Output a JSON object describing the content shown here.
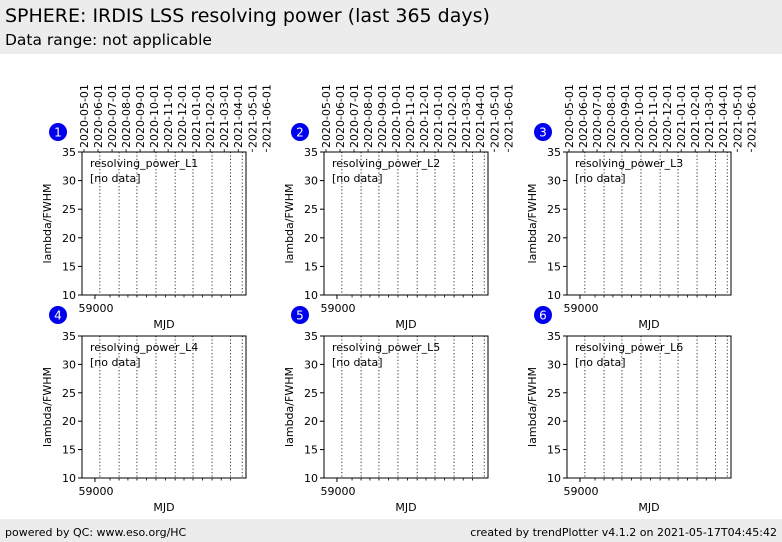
{
  "header": {
    "title": "SPHERE: IRDIS LSS resolving power (last 365 days)",
    "subtitle": "Data range: not applicable"
  },
  "footer": {
    "left": "powered by QC: www.eso.org/HC",
    "right": "created by trendPlotter v4.1.2 on 2021-05-17T04:45:42"
  },
  "colors": {
    "badge": "#0000ee",
    "badge_text": "#ffffff",
    "header_bg": "#ececec",
    "axis": "#000000"
  },
  "chart_data": [
    {
      "type": "scatter",
      "badge": "1",
      "legend_label": "resolving_power_L1",
      "note": "[no data]",
      "xlabel": "MJD",
      "ylabel": "lambda/FWHM",
      "ylim": [
        10,
        35
      ],
      "yticks": [
        "10",
        "15",
        "20",
        "25",
        "30",
        "35"
      ],
      "xtick_label": "59000",
      "date_ticks": [
        "2020-05-01",
        "2020-06-01",
        "2020-07-01",
        "2020-08-01",
        "2020-09-01",
        "2020-10-01",
        "2020-11-01",
        "2020-12-01",
        "2021-01-01",
        "2021-02-01",
        "2021-03-01",
        "2021-04-01",
        "2021-05-01",
        "2021-06-01"
      ],
      "values": []
    },
    {
      "type": "scatter",
      "badge": "2",
      "legend_label": "resolving_power_L2",
      "note": "[no data]",
      "xlabel": "MJD",
      "ylabel": "lambda/FWHM",
      "ylim": [
        10,
        35
      ],
      "yticks": [
        "10",
        "15",
        "20",
        "25",
        "30",
        "35"
      ],
      "xtick_label": "59000",
      "date_ticks": [
        "2020-05-01",
        "2020-06-01",
        "2020-07-01",
        "2020-08-01",
        "2020-09-01",
        "2020-10-01",
        "2020-11-01",
        "2020-12-01",
        "2021-01-01",
        "2021-02-01",
        "2021-03-01",
        "2021-04-01",
        "2021-05-01",
        "2021-06-01"
      ],
      "values": []
    },
    {
      "type": "scatter",
      "badge": "3",
      "legend_label": "resolving_power_L3",
      "note": "[no data]",
      "xlabel": "MJD",
      "ylabel": "lambda/FWHM",
      "ylim": [
        10,
        35
      ],
      "yticks": [
        "10",
        "15",
        "20",
        "25",
        "30",
        "35"
      ],
      "xtick_label": "59000",
      "date_ticks": [
        "2020-05-01",
        "2020-06-01",
        "2020-07-01",
        "2020-08-01",
        "2020-09-01",
        "2020-10-01",
        "2020-11-01",
        "2020-12-01",
        "2021-01-01",
        "2021-02-01",
        "2021-03-01",
        "2021-04-01",
        "2021-05-01",
        "2021-06-01"
      ],
      "values": []
    },
    {
      "type": "scatter",
      "badge": "4",
      "legend_label": "resolving_power_L4",
      "note": "[no data]",
      "xlabel": "MJD",
      "ylabel": "lambda/FWHM",
      "ylim": [
        10,
        35
      ],
      "yticks": [
        "10",
        "15",
        "20",
        "25",
        "30",
        "35"
      ],
      "xtick_label": "59000",
      "date_ticks": [],
      "values": []
    },
    {
      "type": "scatter",
      "badge": "5",
      "legend_label": "resolving_power_L5",
      "note": "[no data]",
      "xlabel": "MJD",
      "ylabel": "lambda/FWHM",
      "ylim": [
        10,
        35
      ],
      "yticks": [
        "10",
        "15",
        "20",
        "25",
        "30",
        "35"
      ],
      "xtick_label": "59000",
      "date_ticks": [],
      "values": []
    },
    {
      "type": "scatter",
      "badge": "6",
      "legend_label": "resolving_power_L6",
      "note": "[no data]",
      "xlabel": "MJD",
      "ylabel": "lambda/FWHM",
      "ylim": [
        10,
        35
      ],
      "yticks": [
        "10",
        "15",
        "20",
        "25",
        "30",
        "35"
      ],
      "xtick_label": "59000",
      "date_ticks": [],
      "values": []
    }
  ]
}
